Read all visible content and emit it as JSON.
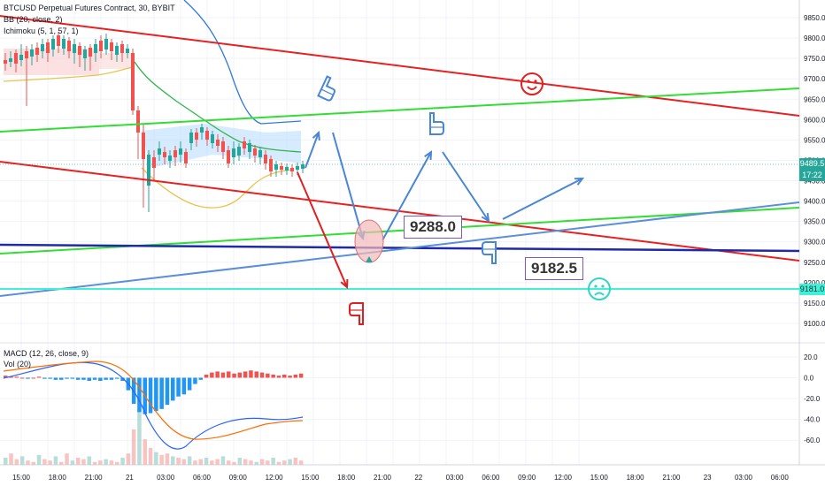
{
  "legend": {
    "symbol": "BTCUSD Perpetual Futures Contract, 30, BYBIT",
    "bb": "BB (20, close, 2)",
    "ichimoku": "Ichimoku (5, 1, 57, 1)",
    "macd": "MACD (12, 26, close, 9)",
    "vol": "Vol (20)"
  },
  "price_tags": {
    "last": "9489.5",
    "countdown": "17:22",
    "support": "9181.0"
  },
  "annotations": {
    "label_a": "9288.0",
    "label_b": "9182.5"
  },
  "colors": {
    "up": "#26a69a",
    "down": "#ef5350",
    "red_line": "#e82020",
    "green_line": "#33dd33",
    "blue_line": "#1e2aa8",
    "steel_line": "#5b8fd9",
    "cyan_line": "#40f0d8",
    "bb_upper": "#2f7bd6",
    "ichimoku": "#e8c44d",
    "macd_line": "#2962ff",
    "signal_line": "#ff6d00"
  },
  "chart_data": [
    {
      "type": "line",
      "title": "BTCUSD Perpetual Futures Contract, 30, BYBIT",
      "x_ticks": [
        "15:00",
        "18:00",
        "21:00",
        "21",
        "03:00",
        "06:00",
        "09:00",
        "12:00",
        "15:00",
        "18:00",
        "21:00",
        "22",
        "03:00",
        "06:00",
        "09:00",
        "12:00",
        "15:00",
        "18:00",
        "21:00",
        "23",
        "03:00",
        "06:00"
      ],
      "y_ticks": [
        9100,
        9150,
        9200,
        9250,
        9300,
        9350,
        9400,
        9450,
        9500,
        9550,
        9600,
        9650,
        9700,
        9750,
        9800,
        9850
      ],
      "ylim": [
        9075,
        9870
      ],
      "last_price": 9489.5,
      "horizontal_levels": [
        {
          "name": "9288.0",
          "value": 9288.0
        },
        {
          "name": "9182.5",
          "value": 9182.5
        },
        {
          "name": "9181.0",
          "value": 9181.0
        }
      ],
      "price_path": [
        {
          "x": "15:00",
          "y": 9740
        },
        {
          "x": "18:00",
          "y": 9760
        },
        {
          "x": "21:00",
          "y": 9790
        },
        {
          "x": "21",
          "y": 9520
        },
        {
          "x": "03:00",
          "y": 9510
        },
        {
          "x": "06:00",
          "y": 9540
        },
        {
          "x": "09:00",
          "y": 9520
        },
        {
          "x": "12:00",
          "y": 9480
        },
        {
          "x": "15:00",
          "y": 9489.5
        }
      ]
    },
    {
      "type": "bar",
      "title": "MACD (12, 26, close, 9)",
      "y_ticks": [
        20,
        0,
        -20,
        -40,
        -60
      ],
      "ylim": [
        -70,
        25
      ],
      "histogram_start": "15:00",
      "histogram_step_hours": 0.5,
      "histogram": [
        2,
        1,
        1,
        0,
        -1,
        0,
        1,
        -1,
        -1,
        -2,
        -2,
        -1,
        -1,
        -2,
        -2,
        -3,
        -2,
        -3,
        -2,
        -2,
        -1,
        -3,
        -12,
        -25,
        -33,
        -35,
        -34,
        -32,
        -30,
        -26,
        -22,
        -18,
        -16,
        -12,
        -6,
        -2,
        3,
        5,
        6,
        5,
        6,
        4,
        5,
        6,
        7,
        6,
        5,
        4,
        3,
        2,
        3,
        2,
        3,
        4
      ]
    }
  ]
}
